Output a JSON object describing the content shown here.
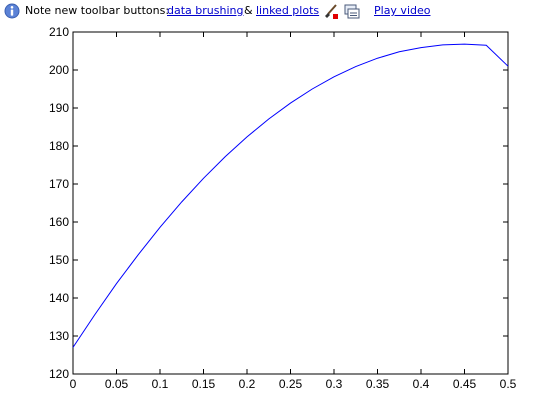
{
  "infobar": {
    "note_text": "Note new toolbar buttons:",
    "link_brushing": "data brushing",
    "amp": "&",
    "link_linked": "linked plots",
    "link_video": "Play video",
    "icon_info": "info-icon",
    "icon_brush": "brush-icon",
    "icon_link": "linked-plots-icon"
  },
  "chart_data": {
    "type": "line",
    "title": "",
    "xlabel": "",
    "ylabel": "",
    "xlim": [
      0,
      0.5
    ],
    "ylim": [
      120,
      210
    ],
    "xticks": [
      "0",
      "0.05",
      "0.1",
      "0.15",
      "0.2",
      "0.25",
      "0.3",
      "0.35",
      "0.4",
      "0.45",
      "0.5"
    ],
    "yticks": [
      "120",
      "130",
      "140",
      "150",
      "160",
      "170",
      "180",
      "190",
      "200",
      "210"
    ],
    "grid": false,
    "line_color": "#0000ff",
    "series": [
      {
        "x": [
          0,
          0.025,
          0.05,
          0.075,
          0.1,
          0.125,
          0.15,
          0.175,
          0.2,
          0.225,
          0.25,
          0.275,
          0.3,
          0.325,
          0.35,
          0.375,
          0.4,
          0.425,
          0.45,
          0.475,
          0.5
        ],
        "y": [
          127,
          135.6,
          143.8,
          151.4,
          158.6,
          165.3,
          171.5,
          177.2,
          182.4,
          187.1,
          191.3,
          195.0,
          198.2,
          200.9,
          203.1,
          204.8,
          205.9,
          206.6,
          206.8,
          206.5,
          201
        ]
      }
    ]
  }
}
